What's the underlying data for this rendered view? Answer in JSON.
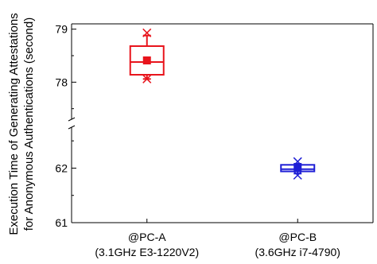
{
  "chart_data": {
    "type": "box",
    "ylabel_lines": [
      "Execution Time of Generating Attestations",
      "for Anonymous Authentications (second)"
    ],
    "axis_break": true,
    "y_segments": [
      {
        "range": [
          77.3,
          79.1
        ],
        "ticks": [
          78,
          79
        ]
      },
      {
        "range": [
          61,
          62.75
        ],
        "ticks": [
          61,
          62
        ]
      }
    ],
    "categories": [
      {
        "name": "@PC-A",
        "subtitle": "(3.1GHz E3-1220V2)"
      },
      {
        "name": "@PC-B",
        "subtitle": "(3.6GHz i7-4790)"
      }
    ],
    "boxes": [
      {
        "category": "@PC-A",
        "segment": 0,
        "color": "#e8141c",
        "min": 78.06,
        "q1": 78.14,
        "median": 78.38,
        "q3": 78.68,
        "max": 78.88,
        "mean": 78.41,
        "extremes": [
          78.06,
          78.93
        ]
      },
      {
        "category": "@PC-B",
        "segment": 1,
        "color": "#1f1fd6",
        "min": 61.9,
        "q1": 61.94,
        "median": 61.98,
        "q3": 62.06,
        "max": 62.08,
        "mean": 62.0,
        "extremes": [
          61.87,
          62.12
        ]
      }
    ],
    "grid": false,
    "legend": "none"
  }
}
